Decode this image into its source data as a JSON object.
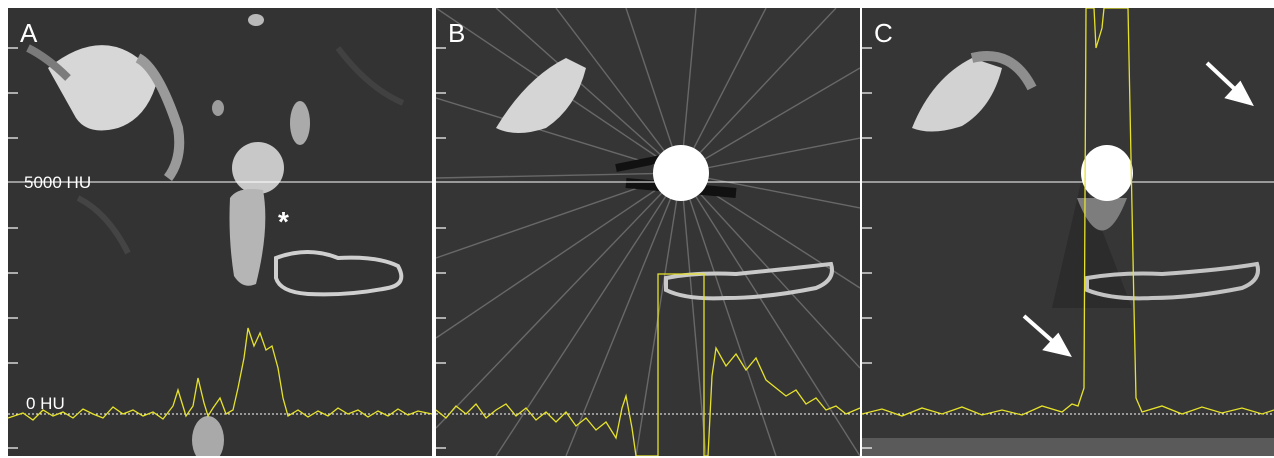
{
  "panels": [
    {
      "label": "A"
    },
    {
      "label": "B"
    },
    {
      "label": "C"
    }
  ],
  "scale_labels": {
    "top": "5000 HU",
    "bottom": "0 HU"
  },
  "annotation": {
    "asterisk": "*"
  },
  "colors": {
    "profile_line": "#e6e22b",
    "scan_background": "#2f2f2f",
    "reference_line": "#ffffff"
  }
}
